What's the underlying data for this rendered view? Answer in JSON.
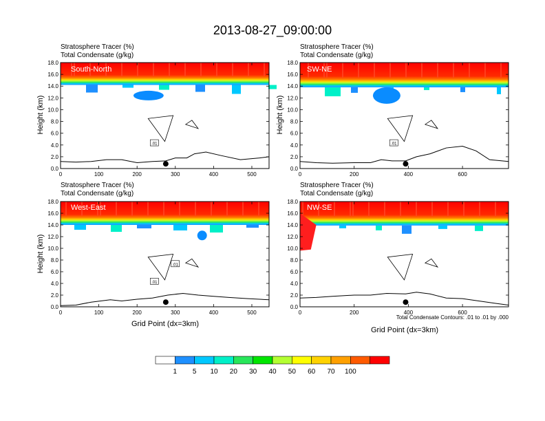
{
  "title": "2013-08-27_09:00:00",
  "colors": {
    "scale": [
      "#ffffff",
      "#1e90ff",
      "#00c8ff",
      "#00f0c8",
      "#28e65a",
      "#00e600",
      "#b4ff32",
      "#ffff00",
      "#ffd200",
      "#ffa000",
      "#ff5a00",
      "#ff0000"
    ],
    "fill_a": "#0a8cff",
    "fill_b": "#ff1e1e"
  },
  "chart_data": [
    {
      "type": "heatmap",
      "id": "south-north",
      "panel_label": "South-North",
      "subtitle_1": "Stratosphere Tracer   (%)",
      "subtitle_2": "Total Condensate   (g/kg)",
      "ylabel": "Height (km)",
      "xlabel": "",
      "x_ticks": [
        "0",
        "100",
        "200",
        "300",
        "400",
        "500"
      ],
      "x_tick_values": [
        0,
        100,
        200,
        300,
        400,
        500
      ],
      "xlim": [
        0,
        545
      ],
      "y_ticks": [
        "0.0",
        "2.0",
        "4.0",
        "6.0",
        "8.0",
        "10.0",
        "12.0",
        "14.0",
        "16.0",
        "18.0"
      ],
      "ylim": [
        0,
        18
      ],
      "tropopause_km": 14.2,
      "contour_labels": [
        ".01"
      ],
      "marker_x": 275,
      "terrain": [
        [
          0,
          1.2
        ],
        [
          40,
          1.1
        ],
        [
          80,
          1.2
        ],
        [
          120,
          1.5
        ],
        [
          160,
          1.5
        ],
        [
          200,
          1.0
        ],
        [
          240,
          1.2
        ],
        [
          275,
          1.3
        ],
        [
          300,
          1.8
        ],
        [
          330,
          1.8
        ],
        [
          350,
          2.5
        ],
        [
          380,
          2.8
        ],
        [
          420,
          2.2
        ],
        [
          470,
          1.5
        ],
        [
          520,
          1.8
        ],
        [
          545,
          2.0
        ]
      ]
    },
    {
      "type": "heatmap",
      "id": "sw-ne",
      "panel_label": "SW-NE",
      "subtitle_1": "Stratosphere Tracer   (%)",
      "subtitle_2": "Total Condensate   (g/kg)",
      "ylabel": "Height (km)",
      "xlabel": "",
      "x_ticks": [
        "0",
        "200",
        "400",
        "600"
      ],
      "x_tick_values": [
        0,
        200,
        400,
        600
      ],
      "xlim": [
        0,
        770
      ],
      "y_ticks": [
        "0.0",
        "2.0",
        "4.0",
        "6.0",
        "8.0",
        "10.0",
        "12.0",
        "14.0",
        "16.0",
        "18.0"
      ],
      "ylim": [
        0,
        18
      ],
      "tropopause_km": 13.8,
      "contour_labels": [
        ".01"
      ],
      "marker_x": 390,
      "terrain": [
        [
          0,
          1.2
        ],
        [
          60,
          1.0
        ],
        [
          120,
          0.9
        ],
        [
          200,
          1.0
        ],
        [
          260,
          1.0
        ],
        [
          300,
          1.5
        ],
        [
          340,
          1.3
        ],
        [
          390,
          1.3
        ],
        [
          430,
          2.0
        ],
        [
          480,
          2.5
        ],
        [
          540,
          3.5
        ],
        [
          600,
          3.8
        ],
        [
          650,
          3.0
        ],
        [
          700,
          1.5
        ],
        [
          770,
          1.2
        ]
      ]
    },
    {
      "type": "heatmap",
      "id": "west-east",
      "panel_label": "West-East",
      "subtitle_1": "Stratosphere Tracer   (%)",
      "subtitle_2": "Total Condensate   (g/kg)",
      "ylabel": "Height (km)",
      "xlabel": "Grid Point (dx=3km)",
      "x_ticks": [
        "0",
        "100",
        "200",
        "300",
        "400",
        "500"
      ],
      "x_tick_values": [
        0,
        100,
        200,
        300,
        400,
        500
      ],
      "xlim": [
        0,
        545
      ],
      "y_ticks": [
        "0.0",
        "2.0",
        "4.0",
        "6.0",
        "8.0",
        "10.0",
        "12.0",
        "14.0",
        "16.0",
        "18.0"
      ],
      "ylim": [
        0,
        18
      ],
      "tropopause_km": 14.0,
      "contour_labels": [
        ".01",
        ".01"
      ],
      "marker_x": 275,
      "terrain": [
        [
          0,
          0.2
        ],
        [
          40,
          0.3
        ],
        [
          80,
          0.8
        ],
        [
          130,
          1.2
        ],
        [
          160,
          1.0
        ],
        [
          200,
          1.3
        ],
        [
          240,
          1.5
        ],
        [
          280,
          2.0
        ],
        [
          320,
          2.3
        ],
        [
          360,
          2.0
        ],
        [
          400,
          1.8
        ],
        [
          440,
          1.6
        ],
        [
          490,
          1.4
        ],
        [
          545,
          1.2
        ]
      ]
    },
    {
      "type": "heatmap",
      "id": "nw-se",
      "panel_label": "NW-SE",
      "subtitle_1": "Stratosphere Tracer   (%)",
      "subtitle_2": "Total Condensate   (g/kg)",
      "ylabel": "",
      "xlabel": "Grid Point (dx=3km)",
      "x_ticks": [
        "0",
        "200",
        "400",
        "600"
      ],
      "x_tick_values": [
        0,
        200,
        400,
        600
      ],
      "xlim": [
        0,
        770
      ],
      "y_ticks": [
        "0.0",
        "2.0",
        "4.0",
        "6.0",
        "8.0",
        "10.0",
        "12.0",
        "14.0",
        "16.0",
        "18.0"
      ],
      "ylim": [
        0,
        18
      ],
      "tropopause_km": 13.9,
      "contour_labels": [],
      "marker_x": 390,
      "note": "Total Condensate Contours: .01 to .01 by .000",
      "terrain": [
        [
          0,
          1.5
        ],
        [
          60,
          1.6
        ],
        [
          120,
          1.8
        ],
        [
          200,
          2.0
        ],
        [
          260,
          2.0
        ],
        [
          320,
          2.3
        ],
        [
          390,
          2.2
        ],
        [
          430,
          2.5
        ],
        [
          480,
          2.2
        ],
        [
          540,
          1.5
        ],
        [
          600,
          1.4
        ],
        [
          660,
          1.0
        ],
        [
          720,
          0.6
        ],
        [
          770,
          0.3
        ]
      ]
    }
  ],
  "colorbar": {
    "levels": [
      "1",
      "5",
      "10",
      "20",
      "30",
      "40",
      "50",
      "60",
      "70",
      "100"
    ]
  }
}
